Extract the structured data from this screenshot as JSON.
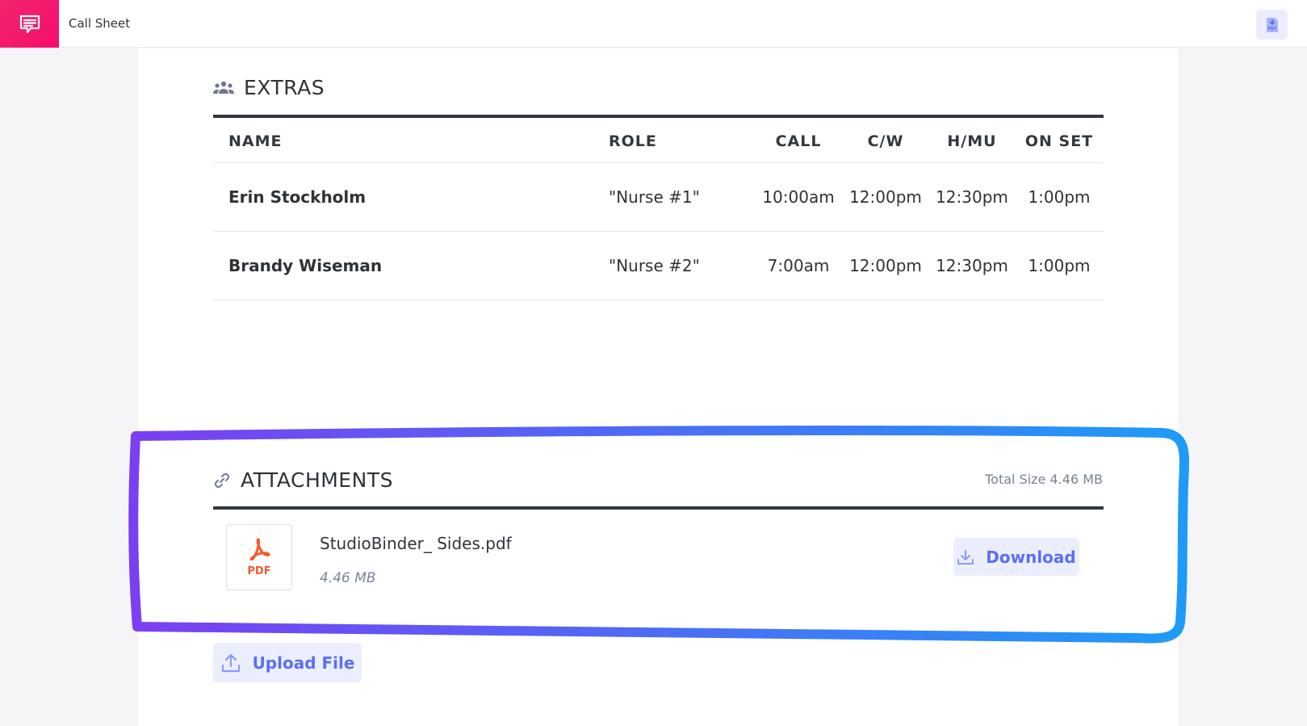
{
  "header": {
    "title": "Call Sheet",
    "logo_icon": "chat-bubble-icon",
    "pdf_export_icon": "pdf-download-icon"
  },
  "extras": {
    "title": "EXTRAS",
    "icon": "group-icon",
    "columns": [
      "NAME",
      "ROLE",
      "CALL",
      "C/W",
      "H/MU",
      "ON SET"
    ],
    "rows": [
      {
        "name": "Erin Stockholm",
        "role": "\"Nurse #1\"",
        "call": "10:00am",
        "cw": "12:00pm",
        "hmu": "12:30pm",
        "onset": "1:00pm"
      },
      {
        "name": "Brandy Wiseman",
        "role": "\"Nurse #2\"",
        "call": "7:00am",
        "cw": "12:00pm",
        "hmu": "12:30pm",
        "onset": "1:00pm"
      }
    ]
  },
  "attachments": {
    "title": "ATTACHMENTS",
    "icon": "link-icon",
    "total_size": "Total Size 4.46 MB",
    "files": [
      {
        "type_label": "PDF",
        "name": "StudioBinder_ Sides.pdf",
        "size": "4.46 MB",
        "download_label": "Download"
      }
    ],
    "upload_label": "Upload File"
  },
  "colors": {
    "brand": "#f2246f",
    "accent": "#5b6ff0",
    "highlight_start": "#7b3ff2",
    "highlight_end": "#1e9bf7",
    "pdf": "#f35a2c"
  }
}
